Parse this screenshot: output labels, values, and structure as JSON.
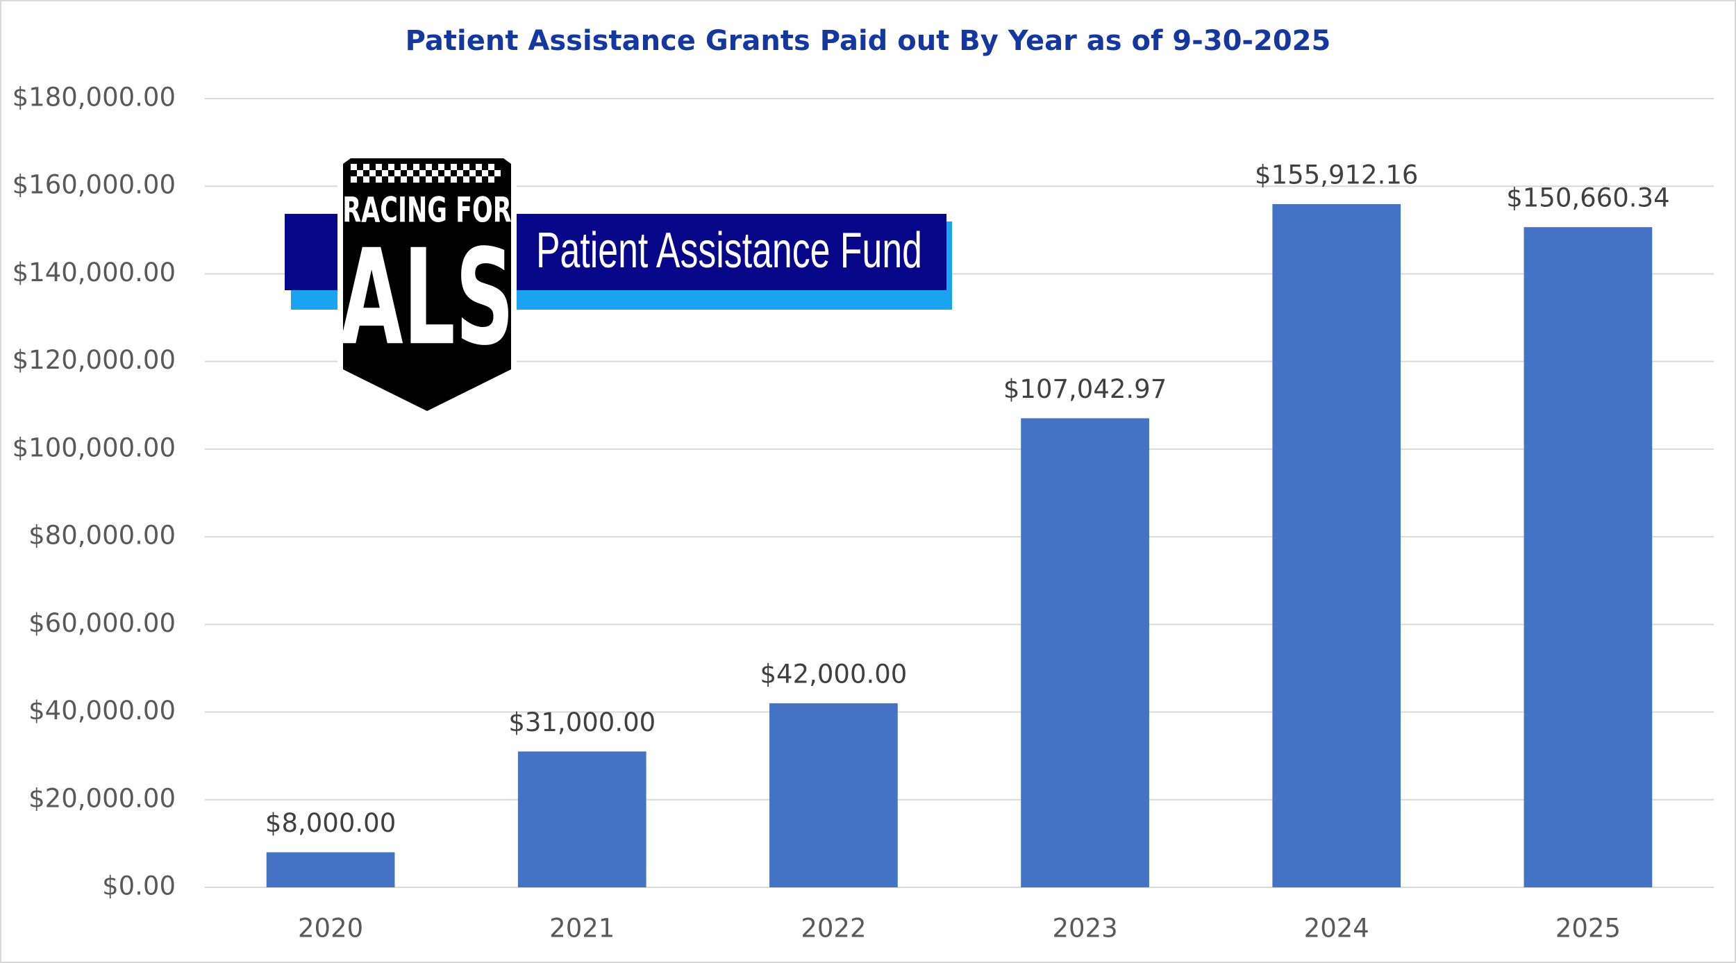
{
  "chart_data": {
    "type": "bar",
    "title": "Patient Assistance Grants Paid out By Year as of 9-30-2025",
    "logo_texts": [
      "RACING FOR",
      "ALS",
      "Patient Assistance Fund"
    ],
    "categories": [
      "2020",
      "2021",
      "2022",
      "2023",
      "2024",
      "2025"
    ],
    "values": [
      8000,
      31000,
      42000,
      107042.97,
      155912.16,
      150660.34
    ],
    "value_labels": [
      "$8,000.00",
      "$31,000.00",
      "$42,000.00",
      "$107,042.97",
      "$155,912.16",
      "$150,660.34"
    ],
    "color": "#4472c4",
    "ylim": [
      0,
      180000
    ],
    "yticks": [
      {
        "value": 0,
        "label": "$0.00"
      },
      {
        "value": 20000,
        "label": "$20,000.00"
      },
      {
        "value": 40000,
        "label": "$40,000.00"
      },
      {
        "value": 60000,
        "label": "$60,000.00"
      },
      {
        "value": 80000,
        "label": "$80,000.00"
      },
      {
        "value": 100000,
        "label": "$100,000.00"
      },
      {
        "value": 120000,
        "label": "$120,000.00"
      },
      {
        "value": 140000,
        "label": "$140,000.00"
      },
      {
        "value": 160000,
        "label": "$160,000.00"
      },
      {
        "value": 180000,
        "label": "$180,000.00"
      }
    ],
    "grid": true
  }
}
